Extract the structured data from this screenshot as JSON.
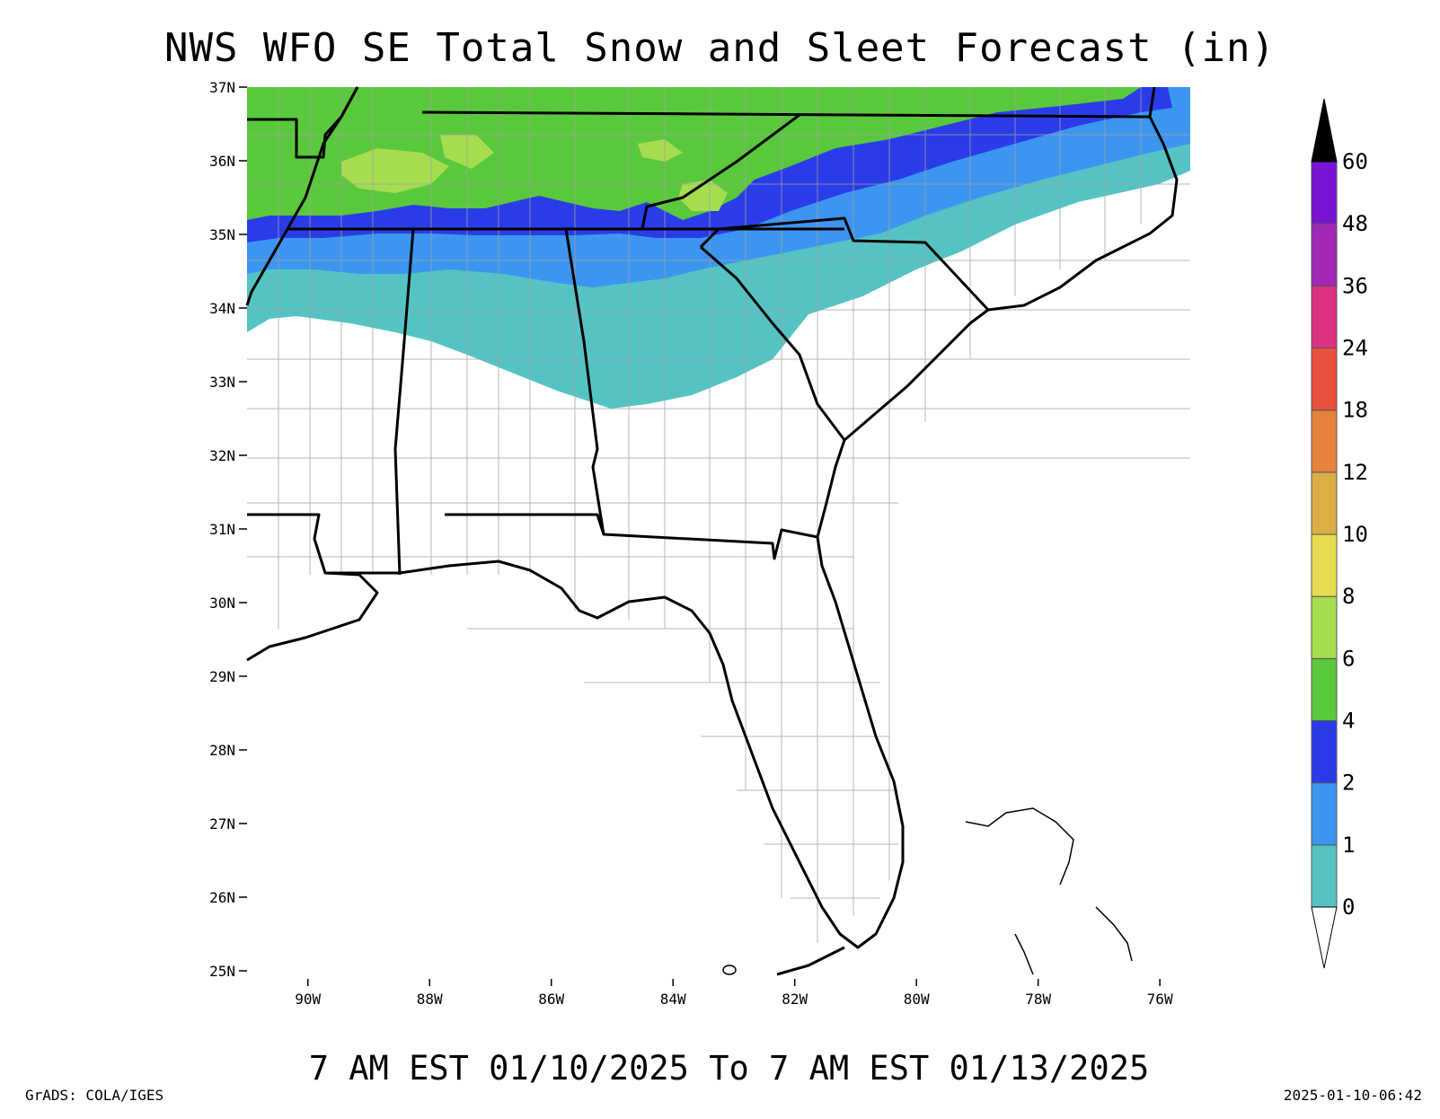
{
  "title": "NWS WFO SE Total Snow and Sleet Forecast (in)",
  "subtitle": "7 AM EST 01/10/2025 To 7 AM EST 01/13/2025",
  "credit": "GrADS: COLA/IGES",
  "timestamp": "2025-01-10-06:42",
  "map": {
    "lat_range": [
      24.5,
      37.0
    ],
    "lon_range": [
      -91.0,
      -75.5
    ],
    "lat_ticks": [
      {
        "value": 37,
        "label": "37N"
      },
      {
        "value": 36,
        "label": "36N"
      },
      {
        "value": 35,
        "label": "35N"
      },
      {
        "value": 34,
        "label": "34N"
      },
      {
        "value": 33,
        "label": "33N"
      },
      {
        "value": 32,
        "label": "32N"
      },
      {
        "value": 31,
        "label": "31N"
      },
      {
        "value": 30,
        "label": "30N"
      },
      {
        "value": 29,
        "label": "29N"
      },
      {
        "value": 28,
        "label": "28N"
      },
      {
        "value": 27,
        "label": "27N"
      },
      {
        "value": 26,
        "label": "26N"
      },
      {
        "value": 25,
        "label": "25N"
      }
    ],
    "lon_ticks": [
      {
        "value": -90,
        "label": "90W"
      },
      {
        "value": -88,
        "label": "88W"
      },
      {
        "value": -86,
        "label": "86W"
      },
      {
        "value": -84,
        "label": "84W"
      },
      {
        "value": -82,
        "label": "82W"
      },
      {
        "value": -80,
        "label": "80W"
      },
      {
        "value": -78,
        "label": "78W"
      },
      {
        "value": -76,
        "label": "76W"
      }
    ],
    "snow_bands": [
      {
        "min_in": 0,
        "color": "#55c3c3",
        "description_level": "0-1"
      },
      {
        "min_in": 1,
        "color": "#3c96f0",
        "description_level": "1-2"
      },
      {
        "min_in": 2,
        "color": "#2a3ce8",
        "description_level": "2-4"
      },
      {
        "min_in": 4,
        "color": "#5ac83c",
        "description_level": "4-6"
      },
      {
        "min_in": 6,
        "color": "#a5dc50",
        "description_level": "6-8"
      }
    ]
  },
  "colorbar": {
    "levels": [
      {
        "label": "0",
        "color": "#55c3c3"
      },
      {
        "label": "1",
        "color": "#3c96f0"
      },
      {
        "label": "2",
        "color": "#2a3ce8"
      },
      {
        "label": "4",
        "color": "#5ac83c"
      },
      {
        "label": "6",
        "color": "#a5dc50"
      },
      {
        "label": "8",
        "color": "#e6dc50"
      },
      {
        "label": "10",
        "color": "#dcaf46"
      },
      {
        "label": "12",
        "color": "#e6823c"
      },
      {
        "label": "18",
        "color": "#e6503c"
      },
      {
        "label": "24",
        "color": "#dc3282"
      },
      {
        "label": "36",
        "color": "#a028b4"
      },
      {
        "label": "48",
        "color": "#7814d2"
      },
      {
        "label": "60",
        "color": "#000000"
      }
    ],
    "top_arrow_color": "#000000",
    "bottom_arrow_color": "#ffffff"
  }
}
